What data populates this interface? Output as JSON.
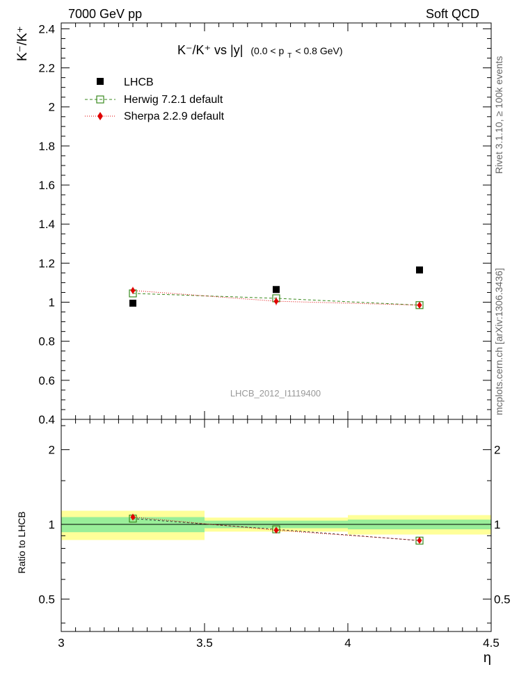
{
  "header": {
    "left": "7000 GeV pp",
    "right": "Soft QCD"
  },
  "side_text": {
    "rivet": "Rivet 3.1.10, ≥ 100k events",
    "mcplots": "mcplots.cern.ch [arXiv:1306.3436]"
  },
  "watermark": "LHCB_2012_I1119400",
  "chart_data": [
    {
      "type": "scatter",
      "panel": "main",
      "title": "K⁻/K⁺ vs |y| (0.0 < p_T < 0.8 GeV)",
      "title_parts": {
        "main": "K⁻/K⁺ vs |y|",
        "range_open": "(0.0 < p",
        "range_sub": "T",
        "range_close": " < 0.8 GeV)"
      },
      "ylabel": "K⁻/K⁺",
      "xlabel": "",
      "xlim": [
        3.0,
        4.5
      ],
      "ylim": [
        0.4,
        2.43
      ],
      "xticks": [
        "3",
        "3.5",
        "4",
        "4.5"
      ],
      "yticks": [
        "0.4",
        "0.6",
        "0.8",
        "1",
        "1.2",
        "1.4",
        "1.6",
        "1.8",
        "2",
        "2.2",
        "2.4"
      ],
      "ytick_values": [
        0.4,
        0.6,
        0.8,
        1.0,
        1.2,
        1.4,
        1.6,
        1.8,
        2.0,
        2.2,
        2.4
      ],
      "legend_position": "top-left",
      "series": [
        {
          "name": "LHCB",
          "color": "#000000",
          "marker": "filled-square",
          "x": [
            3.25,
            3.75,
            4.25
          ],
          "y": [
            0.995,
            1.065,
            1.165
          ]
        },
        {
          "name": "Herwig 7.2.1 default",
          "color": "#3a8a1e",
          "marker": "open-square",
          "line": "dashed",
          "x": [
            3.25,
            3.75,
            4.25
          ],
          "y": [
            1.045,
            1.02,
            0.985
          ]
        },
        {
          "name": "Sherpa 2.2.9 default",
          "color": "#e00000",
          "marker": "diamond",
          "line": "dotted",
          "x": [
            3.25,
            3.75,
            4.25
          ],
          "y": [
            1.06,
            1.005,
            0.985
          ],
          "err": [
            0.018,
            0.02,
            0.015
          ]
        }
      ]
    },
    {
      "type": "scatter",
      "panel": "ratio",
      "ylabel": "Ratio to LHCB",
      "xlabel": "η",
      "xlim": [
        3.0,
        4.5
      ],
      "ylim": [
        0.37,
        2.65
      ],
      "log_y": true,
      "xticks": [
        "3",
        "3.5",
        "4",
        "4.5"
      ],
      "xtick_values": [
        3.0,
        3.5,
        4.0,
        4.5
      ],
      "yticks": [
        "0.5",
        "1",
        "2"
      ],
      "ytick_values": [
        0.5,
        1.0,
        2.0
      ],
      "bands": {
        "bins": [
          [
            3.0,
            3.5
          ],
          [
            3.5,
            4.0
          ],
          [
            4.0,
            4.5
          ]
        ],
        "inner": [
          [
            0.93,
            1.07
          ],
          [
            0.965,
            1.035
          ],
          [
            0.955,
            1.045
          ]
        ],
        "outer": [
          [
            0.865,
            1.135
          ],
          [
            0.935,
            1.065
          ],
          [
            0.91,
            1.09
          ]
        ],
        "inner_color": "#99ee99",
        "outer_color": "#ffff99"
      },
      "series": [
        {
          "name": "Herwig 7.2.1 default",
          "color": "#3a8a1e",
          "marker": "open-square",
          "x": [
            3.25,
            3.75,
            4.25
          ],
          "y": [
            1.055,
            0.955,
            0.86
          ]
        },
        {
          "name": "Sherpa 2.2.9 default",
          "color": "#e00000",
          "marker": "diamond",
          "x": [
            3.25,
            3.75,
            4.25
          ],
          "y": [
            1.07,
            0.947,
            0.862
          ],
          "err": [
            0.02,
            0.02,
            0.018
          ]
        }
      ]
    }
  ]
}
